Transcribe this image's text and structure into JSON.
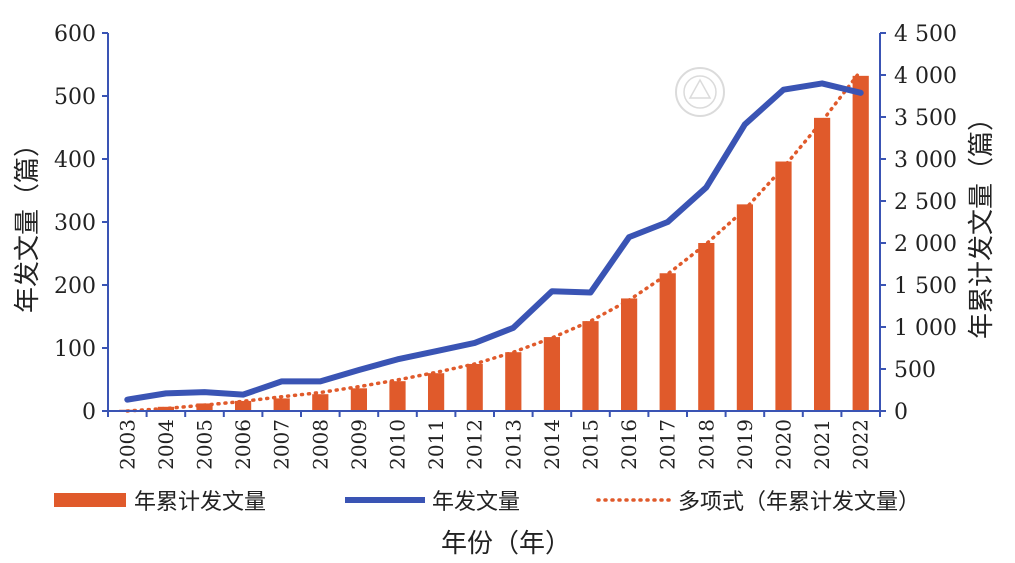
{
  "chart_data": {
    "type": "bar",
    "categories": [
      "2003",
      "2004",
      "2005",
      "2006",
      "2007",
      "2008",
      "2009",
      "2010",
      "2011",
      "2012",
      "2013",
      "2014",
      "2015",
      "2016",
      "2017",
      "2018",
      "2019",
      "2020",
      "2021",
      "2022"
    ],
    "series": [
      {
        "name": "年累计发文量",
        "type": "bar",
        "axis": "right",
        "values": [
          15,
          50,
          90,
          120,
          150,
          200,
          270,
          355,
          450,
          560,
          700,
          880,
          1070,
          1340,
          1640,
          2000,
          2460,
          2970,
          3490,
          3990
        ]
      },
      {
        "name": "年发文量",
        "type": "line",
        "axis": "left",
        "values": [
          18,
          28,
          30,
          26,
          47,
          47,
          65,
          82,
          95,
          108,
          132,
          190,
          188,
          276,
          300,
          355,
          455,
          510,
          520,
          505
        ]
      },
      {
        "name": "多项式（年累计发文量）",
        "type": "line-dotted",
        "axis": "right",
        "values": [
          0,
          30,
          70,
          115,
          170,
          220,
          290,
          370,
          460,
          560,
          700,
          870,
          1070,
          1320,
          1630,
          1990,
          2400,
          2900,
          3450,
          4050
        ]
      }
    ],
    "left_axis": {
      "label": "年发文量（篇）",
      "range": [
        0,
        600
      ],
      "ticks": [
        0,
        100,
        200,
        300,
        400,
        500,
        600
      ],
      "tick_labels": [
        "0",
        "100",
        "200",
        "300",
        "400",
        "500",
        "600"
      ]
    },
    "right_axis": {
      "label": "年累计发文量（篇）",
      "range": [
        0,
        4500
      ],
      "ticks": [
        0,
        500,
        1000,
        1500,
        2000,
        2500,
        3000,
        3500,
        4000,
        4500
      ],
      "tick_labels": [
        "0",
        "500",
        "1 000",
        "1 500",
        "2 000",
        "2 500",
        "3 000",
        "3 500",
        "4 000",
        "4 500"
      ]
    },
    "xlabel": "年份（年）",
    "legend_position": "bottom",
    "grid": false,
    "colors": {
      "bar": "#e05a2b",
      "line": "#3a54b4",
      "trend": "#e05a2b",
      "axis": "#3a54b4"
    }
  }
}
